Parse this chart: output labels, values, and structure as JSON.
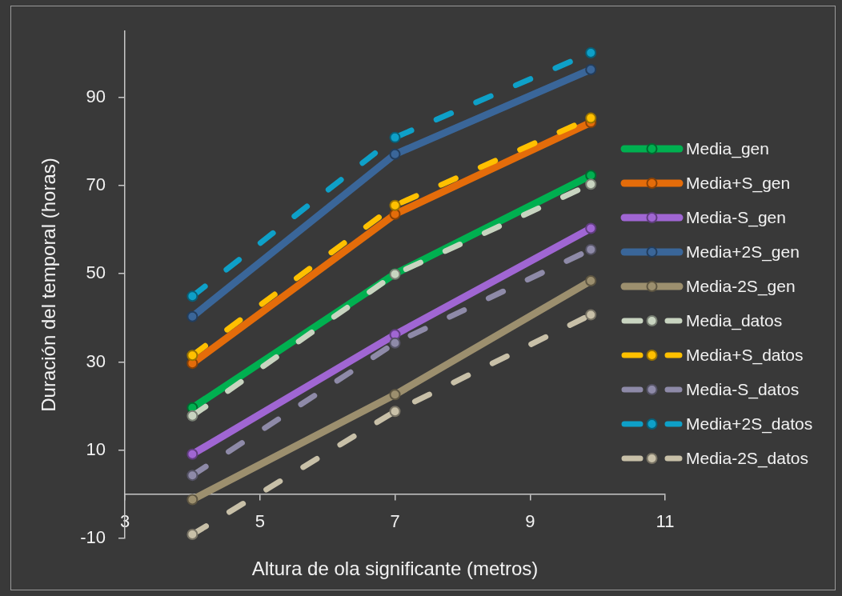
{
  "chart_data": {
    "type": "line",
    "xlabel": "Altura de ola significante (metros)",
    "ylabel": "Duración del temporal (horas)",
    "x": [
      4,
      7,
      9.9
    ],
    "xlim": [
      3,
      11
    ],
    "xticks": [
      3,
      5,
      7,
      9,
      11
    ],
    "ylim": [
      -10,
      105
    ],
    "yticks": [
      -10,
      10,
      30,
      50,
      70,
      90
    ],
    "legend": "right",
    "marker": "circle",
    "series": [
      {
        "name": "Media_gen",
        "color": "#00b050",
        "line_style": "solid",
        "values": [
          19.6,
          50,
          72.3
        ]
      },
      {
        "name": "Media+S_gen",
        "color": "#e46c0a",
        "line_style": "solid",
        "values": [
          29.7,
          63.5,
          84.3
        ]
      },
      {
        "name": "Media-S_gen",
        "color": "#a066d3",
        "line_style": "solid",
        "values": [
          9.1,
          36.2,
          60.3
        ]
      },
      {
        "name": "Media+2S_gen",
        "color": "#3a6699",
        "line_style": "solid",
        "values": [
          40.3,
          77.1,
          96.3
        ]
      },
      {
        "name": "Media-2S_gen",
        "color": "#9c8f6e",
        "line_style": "solid",
        "values": [
          -1.2,
          22.6,
          48.4
        ]
      },
      {
        "name": "Media_datos",
        "color": "#c8d4c0",
        "line_style": "dashed",
        "values": [
          17.8,
          49.9,
          70.3
        ]
      },
      {
        "name": "Media+S_datos",
        "color": "#ffc000",
        "line_style": "dashed",
        "values": [
          31.5,
          65.5,
          85.3
        ]
      },
      {
        "name": "Media-S_datos",
        "color": "#8e8aa8",
        "line_style": "dashed",
        "values": [
          4.3,
          34.3,
          55.5
        ]
      },
      {
        "name": "Media+2S_datos",
        "color": "#0ea0c8",
        "line_style": "dashed",
        "values": [
          44.9,
          80.9,
          100.1
        ]
      },
      {
        "name": "Media-2S_datos",
        "color": "#c8c0a8",
        "line_style": "dashed",
        "values": [
          -9.1,
          18.8,
          40.7
        ]
      }
    ]
  }
}
